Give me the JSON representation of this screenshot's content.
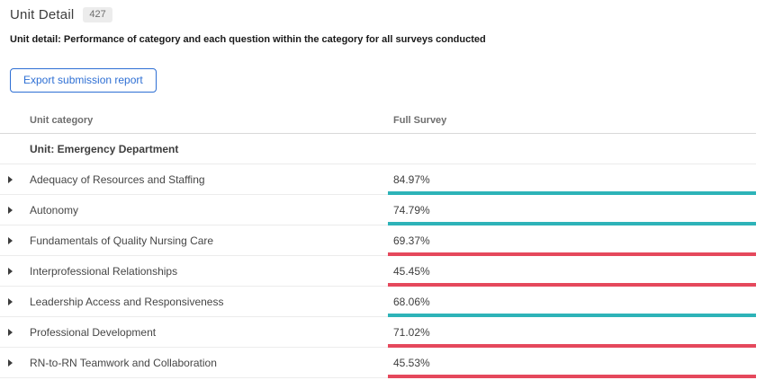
{
  "page": {
    "title": "Unit Detail",
    "count_badge": "427",
    "description": "Unit detail: Performance of category and each question within the category for all surveys conducted"
  },
  "toolbar": {
    "export_button_label": "Export submission report"
  },
  "table": {
    "columns": {
      "category": "Unit category",
      "full_survey": "Full Survey"
    },
    "group_header": "Unit: Emergency Department",
    "rows": [
      {
        "label": "Adequacy of Resources and Staffing",
        "value": "84.97%",
        "status": "positive"
      },
      {
        "label": "Autonomy",
        "value": "74.79%",
        "status": "positive"
      },
      {
        "label": "Fundamentals of Quality Nursing Care",
        "value": "69.37%",
        "status": "negative"
      },
      {
        "label": "Interprofessional Relationships",
        "value": "45.45%",
        "status": "negative"
      },
      {
        "label": "Leadership Access and Responsiveness",
        "value": "68.06%",
        "status": "positive"
      },
      {
        "label": "Professional Development",
        "value": "71.02%",
        "status": "negative"
      },
      {
        "label": "RN-to-RN Teamwork and Collaboration",
        "value": "45.53%",
        "status": "negative"
      }
    ]
  },
  "colors": {
    "positive_underline": "#2db3b8",
    "negative_underline": "#e5485c",
    "button_blue": "#2e6fd4",
    "badge_background": "#ececec"
  }
}
